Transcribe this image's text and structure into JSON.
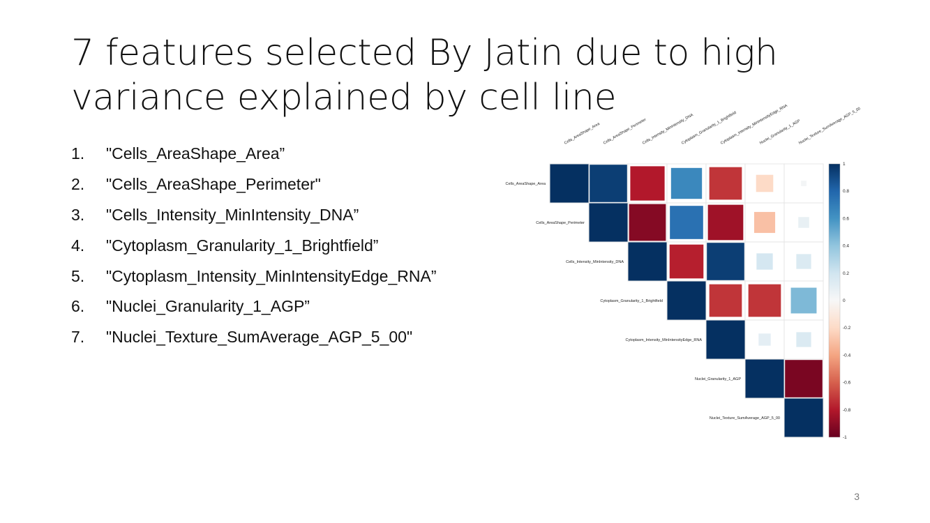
{
  "slide": {
    "title": "7 features selected By Jatin due to high variance explained by cell line",
    "page_number": "3"
  },
  "features": [
    {
      "num": "1.",
      "text": "\"Cells_AreaShape_Area”"
    },
    {
      "num": "2.",
      "text": "\"Cells_AreaShape_Perimeter\""
    },
    {
      "num": "3.",
      "text": "\"Cells_Intensity_MinIntensity_DNA”"
    },
    {
      "num": "4.",
      "text": "\"Cytoplasm_Granularity_1_Brightfield”"
    },
    {
      "num": "5.",
      "text": "\"Cytoplasm_Intensity_MinIntensityEdge_RNA”"
    },
    {
      "num": "6.",
      "text": "\"Nuclei_Granularity_1_AGP”"
    },
    {
      "num": "7.",
      "text": "\"Nuclei_Texture_SumAverage_AGP_5_00\""
    }
  ],
  "chart_data": {
    "type": "heatmap",
    "variables": [
      "Cells_AreaShape_Area",
      "Cells_AreaShape_Perimeter",
      "Cells_Intensity_MinIntensity_DNA",
      "Cytoplasm_Granularity_1_Brightfield",
      "Cytoplasm_Intensity_MinIntensityEdge_RNA",
      "Nuclei_Granularity_1_AGP",
      "Nuclei_Texture_SumAverage_AGP_5_00"
    ],
    "layout": "upper-triangle",
    "values": [
      [
        1.0,
        0.95,
        -0.8,
        0.65,
        -0.72,
        -0.2,
        0.02
      ],
      [
        0.95,
        1.0,
        -0.92,
        0.75,
        -0.85,
        -0.3,
        0.08
      ],
      [
        -0.8,
        -0.92,
        1.0,
        -0.78,
        0.95,
        0.18,
        0.15
      ],
      [
        0.65,
        0.75,
        -0.78,
        1.0,
        -0.72,
        -0.72,
        0.45
      ],
      [
        -0.72,
        -0.85,
        0.95,
        -0.72,
        1.0,
        0.1,
        0.15
      ],
      [
        -0.2,
        -0.3,
        0.18,
        -0.72,
        0.1,
        1.0,
        -0.95
      ],
      [
        0.02,
        0.08,
        0.15,
        0.45,
        0.15,
        -0.95,
        1.0
      ]
    ],
    "colorbar": {
      "range": [
        -1,
        1
      ],
      "ticks": [
        "1",
        "0.8",
        "0.6",
        "0.4",
        "0.2",
        "0",
        "-0.2",
        "-0.4",
        "-0.6",
        "-0.8",
        "-1"
      ]
    },
    "colors": {
      "strong_negative": "#67001f",
      "negative": "#d6604d",
      "neutral": "#f7f7f7",
      "positive": "#4393c3",
      "strong_positive": "#053061"
    }
  }
}
